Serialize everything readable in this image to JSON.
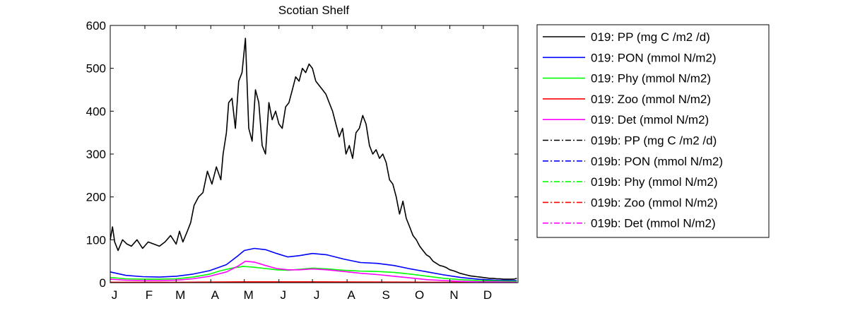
{
  "chart_data": {
    "type": "line",
    "title": "Scotian Shelf",
    "xlabel": "",
    "ylabel": "",
    "ylim": [
      0,
      600
    ],
    "yticks": [
      0,
      100,
      200,
      300,
      400,
      500,
      600
    ],
    "xlim": [
      1,
      366
    ],
    "month_ticks": [
      {
        "label": "J",
        "day": 1
      },
      {
        "label": "F",
        "day": 32
      },
      {
        "label": "M",
        "day": 60
      },
      {
        "label": "A",
        "day": 91
      },
      {
        "label": "M",
        "day": 121
      },
      {
        "label": "J",
        "day": 152
      },
      {
        "label": "J",
        "day": 182
      },
      {
        "label": "A",
        "day": 213
      },
      {
        "label": "S",
        "day": 244
      },
      {
        "label": "O",
        "day": 274
      },
      {
        "label": "N",
        "day": 305
      },
      {
        "label": "D",
        "day": 335
      }
    ],
    "grid": false,
    "legend_position": "outside-right",
    "series": [
      {
        "name": "019: PP (mg C /m2 /d)",
        "color": "#000000",
        "style": "solid",
        "x": [
          1,
          3,
          5,
          8,
          12,
          16,
          20,
          25,
          30,
          35,
          40,
          45,
          50,
          55,
          60,
          63,
          66,
          70,
          73,
          76,
          80,
          84,
          88,
          92,
          96,
          100,
          102,
          105,
          107,
          110,
          113,
          116,
          119,
          122,
          125,
          128,
          131,
          134,
          137,
          140,
          143,
          146,
          149,
          152,
          155,
          158,
          161,
          164,
          167,
          170,
          173,
          176,
          179,
          182,
          185,
          188,
          191,
          194,
          197,
          200,
          203,
          206,
          209,
          212,
          215,
          218,
          221,
          224,
          227,
          230,
          233,
          236,
          239,
          242,
          245,
          248,
          251,
          254,
          257,
          260,
          263,
          266,
          269,
          272,
          275,
          278,
          281,
          284,
          287,
          290,
          293,
          296,
          299,
          302,
          305,
          308,
          311,
          314,
          317,
          320,
          323,
          326,
          329,
          332,
          335,
          338,
          341,
          344,
          347,
          350,
          353,
          356,
          359,
          362,
          365
        ],
        "y": [
          100,
          130,
          95,
          75,
          100,
          90,
          85,
          100,
          80,
          95,
          90,
          85,
          95,
          110,
          90,
          120,
          95,
          120,
          140,
          180,
          200,
          210,
          260,
          230,
          270,
          240,
          300,
          350,
          420,
          430,
          360,
          470,
          490,
          570,
          360,
          330,
          450,
          420,
          320,
          300,
          420,
          380,
          400,
          370,
          360,
          410,
          420,
          450,
          480,
          470,
          500,
          490,
          510,
          500,
          470,
          460,
          450,
          440,
          420,
          400,
          370,
          340,
          360,
          300,
          320,
          290,
          350,
          360,
          390,
          370,
          320,
          300,
          310,
          290,
          300,
          280,
          240,
          230,
          200,
          160,
          190,
          150,
          130,
          110,
          100,
          85,
          75,
          65,
          60,
          50,
          45,
          40,
          38,
          35,
          30,
          28,
          25,
          22,
          20,
          18,
          16,
          15,
          14,
          13,
          12,
          11,
          10,
          10,
          9,
          9,
          8,
          8,
          8,
          8,
          10
        ]
      },
      {
        "name": "019: PON (mmol N/m2)",
        "color": "#0000ff",
        "style": "solid",
        "x": [
          1,
          15,
          30,
          45,
          60,
          75,
          90,
          105,
          115,
          121,
          130,
          140,
          150,
          160,
          170,
          182,
          195,
          210,
          225,
          240,
          255,
          270,
          285,
          300,
          315,
          330,
          345,
          365
        ],
        "y": [
          25,
          17,
          14,
          13,
          15,
          20,
          28,
          42,
          62,
          75,
          80,
          77,
          68,
          60,
          63,
          68,
          65,
          55,
          47,
          45,
          40,
          32,
          25,
          18,
          12,
          8,
          6,
          5
        ]
      },
      {
        "name": "019: Phy (mmol N/m2)",
        "color": "#00ff00",
        "style": "solid",
        "x": [
          1,
          15,
          30,
          45,
          60,
          75,
          90,
          100,
          110,
          120,
          130,
          140,
          150,
          160,
          170,
          182,
          195,
          210,
          225,
          240,
          255,
          270,
          285,
          300,
          315,
          330,
          345,
          365
        ],
        "y": [
          12,
          9,
          8,
          8,
          9,
          13,
          20,
          28,
          34,
          38,
          36,
          33,
          30,
          29,
          31,
          34,
          32,
          29,
          27,
          26,
          24,
          20,
          15,
          10,
          7,
          5,
          4,
          3
        ]
      },
      {
        "name": "019: Zoo (mmol N/m2)",
        "color": "#ff0000",
        "style": "solid",
        "x": [
          1,
          60,
          120,
          180,
          240,
          300,
          365
        ],
        "y": [
          1,
          1,
          2,
          2,
          1.5,
          1,
          0.5
        ]
      },
      {
        "name": "019: Det (mmol N/m2)",
        "color": "#ff00ff",
        "style": "solid",
        "x": [
          1,
          15,
          30,
          45,
          60,
          75,
          90,
          105,
          115,
          122,
          130,
          140,
          150,
          160,
          170,
          182,
          195,
          210,
          225,
          240,
          255,
          270,
          285,
          300,
          315,
          330,
          345,
          365
        ],
        "y": [
          8,
          6,
          5,
          5,
          6,
          9,
          15,
          25,
          38,
          50,
          48,
          40,
          33,
          30,
          30,
          32,
          30,
          26,
          22,
          19,
          15,
          11,
          7,
          5,
          3,
          2,
          2,
          1
        ]
      },
      {
        "name": "019b: PP (mg C /m2 /d)",
        "color": "#000000",
        "style": "dashdot",
        "x": [],
        "y": []
      },
      {
        "name": "019b: PON (mmol N/m2)",
        "color": "#0000ff",
        "style": "dashdot",
        "x": [],
        "y": []
      },
      {
        "name": "019b: Phy (mmol N/m2)",
        "color": "#00ff00",
        "style": "dashdot",
        "x": [],
        "y": []
      },
      {
        "name": "019b: Zoo (mmol N/m2)",
        "color": "#ff0000",
        "style": "dashdot",
        "x": [],
        "y": []
      },
      {
        "name": "019b: Det (mmol N/m2)",
        "color": "#ff00ff",
        "style": "dashdot",
        "x": [],
        "y": []
      }
    ]
  }
}
